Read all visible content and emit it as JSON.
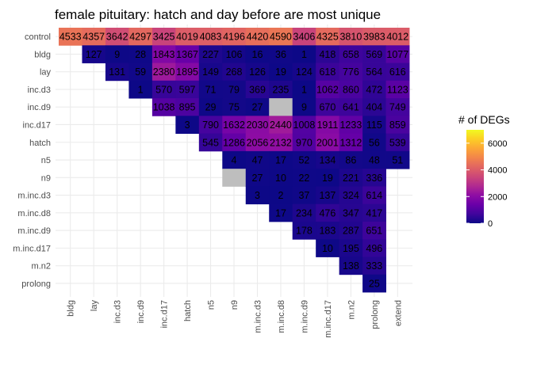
{
  "chart_data": {
    "type": "heatmap",
    "title": "female pituitary: hatch and day before are most unique",
    "xlabel": "",
    "ylabel": "",
    "x_categories": [
      "bldg",
      "lay",
      "inc.d3",
      "inc.d9",
      "inc.d17",
      "hatch",
      "n5",
      "n9",
      "m.inc.d3",
      "m.inc.d8",
      "m.inc.d9",
      "m.inc.d17",
      "m.n2",
      "prolong",
      "extend"
    ],
    "y_categories": [
      "control",
      "bldg",
      "lay",
      "inc.d3",
      "inc.d9",
      "inc.d17",
      "hatch",
      "n5",
      "n9",
      "m.inc.d3",
      "m.inc.d8",
      "m.inc.d9",
      "m.inc.d17",
      "m.n2",
      "prolong"
    ],
    "values": [
      [
        4533,
        4357,
        3642,
        4297,
        3425,
        4019,
        4083,
        4196,
        4420,
        4590,
        3406,
        4325,
        3810,
        3983,
        4012
      ],
      [
        null,
        127,
        9,
        28,
        1843,
        1367,
        227,
        106,
        16,
        36,
        1,
        418,
        658,
        569,
        1077
      ],
      [
        null,
        null,
        131,
        59,
        2380,
        1895,
        149,
        268,
        126,
        19,
        124,
        618,
        776,
        564,
        616
      ],
      [
        null,
        null,
        null,
        1,
        570,
        597,
        71,
        79,
        369,
        235,
        1,
        1062,
        860,
        472,
        1123
      ],
      [
        null,
        null,
        null,
        null,
        1038,
        895,
        29,
        75,
        27,
        "NA",
        9,
        670,
        641,
        404,
        749
      ],
      [
        null,
        null,
        null,
        null,
        null,
        3,
        790,
        1632,
        2030,
        2440,
        1008,
        1911,
        1233,
        115,
        859
      ],
      [
        null,
        null,
        null,
        null,
        null,
        null,
        545,
        1286,
        2056,
        2132,
        970,
        2001,
        1312,
        56,
        539
      ],
      [
        null,
        null,
        null,
        null,
        null,
        null,
        null,
        4,
        47,
        17,
        52,
        134,
        86,
        48,
        51
      ],
      [
        null,
        null,
        null,
        null,
        null,
        null,
        null,
        "NA",
        27,
        10,
        22,
        19,
        221,
        336,
        null
      ],
      [
        null,
        null,
        null,
        null,
        null,
        null,
        null,
        null,
        3,
        2,
        37,
        137,
        324,
        614,
        null
      ],
      [
        null,
        null,
        null,
        null,
        null,
        null,
        null,
        null,
        null,
        17,
        234,
        476,
        347,
        417,
        null
      ],
      [
        null,
        null,
        null,
        null,
        null,
        null,
        null,
        null,
        null,
        null,
        178,
        183,
        287,
        651,
        null
      ],
      [
        null,
        null,
        null,
        null,
        null,
        null,
        null,
        null,
        null,
        null,
        null,
        10,
        195,
        496,
        null
      ],
      [
        null,
        null,
        null,
        null,
        null,
        null,
        null,
        null,
        null,
        null,
        null,
        null,
        138,
        333,
        null
      ],
      [
        null,
        null,
        null,
        null,
        null,
        null,
        null,
        null,
        null,
        null,
        null,
        null,
        null,
        25,
        null
      ]
    ],
    "legend": {
      "title": "# of DEGs",
      "ticks": [
        0,
        2000,
        4000,
        6000
      ],
      "range": [
        0,
        7000
      ],
      "position": "right",
      "colormap": "plasma"
    },
    "na_color": "#bebebe",
    "grid": true
  }
}
